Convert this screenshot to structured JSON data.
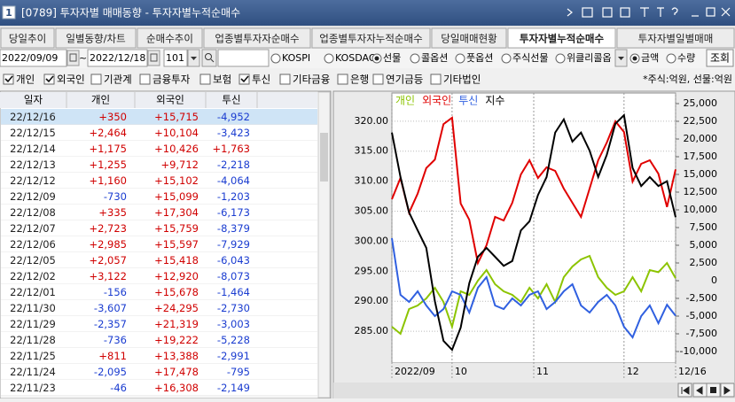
{
  "window": {
    "number": "1",
    "title": "[0789] 투자자별 매매동향 - 투자자별누적순매수"
  },
  "tabs": [
    {
      "label": "당일추이",
      "active": false
    },
    {
      "label": "일별동향/차트",
      "active": false
    },
    {
      "label": "순매수추이",
      "active": false
    },
    {
      "label": "업종별투자자순매수",
      "active": false
    },
    {
      "label": "업종별투자자누적순매수",
      "active": false
    },
    {
      "label": "당일매매현황",
      "active": false
    },
    {
      "label": "투자자별누적순매수",
      "active": true
    },
    {
      "label": "투자자별일별매매",
      "active": false
    }
  ],
  "toolbar": {
    "start_date": "2022/09/09",
    "date_sep": "~",
    "end_date": "2022/12/18",
    "code": "101",
    "markets": [
      {
        "label": "KOSPI",
        "checked": false
      },
      {
        "label": "KOSDAQ",
        "checked": false
      },
      {
        "label": "선물",
        "checked": true
      },
      {
        "label": "콜옵션",
        "checked": false
      },
      {
        "label": "풋옵션",
        "checked": false
      },
      {
        "label": "주식선물",
        "checked": false
      },
      {
        "label": "위클리콜옵",
        "checked": false
      }
    ],
    "units": [
      {
        "label": "금액",
        "checked": true
      },
      {
        "label": "수량",
        "checked": false
      }
    ],
    "query_button": "조회"
  },
  "investors": [
    {
      "label": "개인",
      "checked": true
    },
    {
      "label": "외국인",
      "checked": true
    },
    {
      "label": "기관계",
      "checked": false
    },
    {
      "label": "금융투자",
      "checked": false
    },
    {
      "label": "보험",
      "checked": false
    },
    {
      "label": "투신",
      "checked": true
    },
    {
      "label": "기타금융",
      "checked": false
    },
    {
      "label": "은행",
      "checked": false
    },
    {
      "label": "연기금등",
      "checked": false
    },
    {
      "label": "기타법인",
      "checked": false
    }
  ],
  "unit_note": "*주식:억원, 선물:억원",
  "table": {
    "columns": [
      "일자",
      "개인",
      "외국인",
      "투신"
    ],
    "rows": [
      [
        "22/12/16",
        "+350",
        "+15,715",
        "-4,952"
      ],
      [
        "22/12/15",
        "+2,464",
        "+10,104",
        "-3,423"
      ],
      [
        "22/12/14",
        "+1,175",
        "+10,426",
        "+1,763"
      ],
      [
        "22/12/13",
        "+1,255",
        "+9,712",
        "-2,218"
      ],
      [
        "22/12/12",
        "+1,160",
        "+15,102",
        "-4,064"
      ],
      [
        "22/12/09",
        "-730",
        "+15,099",
        "-1,203"
      ],
      [
        "22/12/08",
        "+335",
        "+17,304",
        "-6,173"
      ],
      [
        "22/12/07",
        "+2,723",
        "+15,759",
        "-8,379"
      ],
      [
        "22/12/06",
        "+2,985",
        "+15,597",
        "-7,929"
      ],
      [
        "22/12/05",
        "+2,057",
        "+15,418",
        "-6,043"
      ],
      [
        "22/12/02",
        "+3,122",
        "+12,920",
        "-8,073"
      ],
      [
        "22/12/01",
        "-156",
        "+15,678",
        "-1,464"
      ],
      [
        "22/11/30",
        "-3,607",
        "+24,295",
        "-2,730"
      ],
      [
        "22/11/29",
        "-2,357",
        "+21,319",
        "-3,003"
      ],
      [
        "22/11/28",
        "-736",
        "+19,222",
        "-5,228"
      ],
      [
        "22/11/25",
        "+811",
        "+13,388",
        "-2,991"
      ],
      [
        "22/11/24",
        "-2,095",
        "+17,478",
        "-795"
      ],
      [
        "22/11/23",
        "-46",
        "+16,308",
        "-2,149"
      ]
    ]
  },
  "chart_data": {
    "type": "line",
    "grid": true,
    "x": [
      0,
      2,
      4,
      6,
      8,
      10,
      12,
      14,
      16,
      18,
      20,
      22,
      24,
      26,
      28,
      30,
      32,
      34,
      36,
      38,
      40,
      42,
      44,
      46,
      48,
      50,
      52,
      54,
      56,
      58,
      60,
      62,
      64,
      66
    ],
    "xlim": [
      0,
      66
    ],
    "xticks": [
      {
        "value": 0,
        "label": "2022/09"
      },
      {
        "value": 14,
        "label": "10"
      },
      {
        "value": 33,
        "label": "11"
      },
      {
        "value": 54,
        "label": "12"
      },
      {
        "value": 66,
        "label": "12/16"
      }
    ],
    "ylim": [
      279.7,
      324.7
    ],
    "yticks": [
      {
        "value": 285,
        "label": "285.00"
      },
      {
        "value": 290,
        "label": "290.00"
      },
      {
        "value": 295,
        "label": "295.00"
      },
      {
        "value": 300,
        "label": "300.00"
      },
      {
        "value": 305,
        "label": "305.00"
      },
      {
        "value": 310,
        "label": "310.00"
      },
      {
        "value": 315,
        "label": "315.00"
      },
      {
        "value": 320,
        "label": "320.00"
      }
    ],
    "y2lim": [
      -11625,
      26500
    ],
    "y2ticks": [
      {
        "value": -10000,
        "label": "-10,000"
      },
      {
        "value": -7500,
        "label": "-7,500"
      },
      {
        "value": -5000,
        "label": "-5,000"
      },
      {
        "value": -2500,
        "label": "-2,500"
      },
      0,
      {
        "value": 2500,
        "label": "2,500"
      },
      {
        "value": 5000,
        "label": "5,000"
      },
      {
        "value": 7500,
        "label": "7,500"
      },
      {
        "value": 10000,
        "label": "10,000"
      },
      {
        "value": 12500,
        "label": "12,500"
      },
      {
        "value": 15000,
        "label": "15,000"
      },
      {
        "value": 17500,
        "label": "17,500"
      },
      {
        "value": 20000,
        "label": "20,000"
      },
      {
        "value": 22500,
        "label": "22,500"
      },
      {
        "value": 25000,
        "label": "25,000"
      }
    ],
    "series": [
      {
        "name": "개인",
        "color": "#8cc400",
        "axis": "y2",
        "values": [
          -6500,
          -7500,
          -4000,
          -3500,
          -2500,
          -1000,
          -3000,
          -6500,
          -1500,
          -2000,
          0,
          1500,
          -500,
          -1500,
          -2000,
          -3000,
          -1000,
          -2500,
          -500,
          -3000,
          500,
          2000,
          3000,
          3500,
          500,
          -1000,
          -2000,
          -1500,
          500,
          -1500,
          1500,
          1200,
          2500,
          350
        ]
      },
      {
        "name": "외국인",
        "color": "#e00000",
        "axis": "y2",
        "values": [
          11500,
          14500,
          9600,
          12300,
          15900,
          17100,
          22100,
          23000,
          10900,
          8600,
          2500,
          5000,
          9000,
          8500,
          11000,
          15000,
          17000,
          14500,
          16000,
          15500,
          13000,
          11000,
          9000,
          13000,
          17000,
          19500,
          22500,
          21000,
          14000,
          16500,
          17000,
          15100,
          10400,
          15715
        ]
      },
      {
        "name": "투신",
        "color": "#3060e0",
        "axis": "y2",
        "values": [
          6000,
          -2000,
          -3000,
          -1500,
          -3500,
          -5000,
          -4000,
          -1500,
          -2000,
          -4500,
          -1000,
          500,
          -3500,
          -4000,
          -2500,
          -3500,
          -2000,
          -1500,
          -4000,
          -3000,
          -1500,
          -500,
          -3500,
          -4500,
          -3000,
          -2000,
          -3500,
          -6500,
          -8000,
          -5000,
          -3500,
          -6000,
          -3400,
          -4952
        ]
      },
      {
        "name": "지수",
        "color": "#000000",
        "axis": "y",
        "values": [
          318.1,
          310.7,
          304.8,
          301.8,
          298.9,
          290.0,
          283.4,
          281.9,
          285.6,
          293.0,
          297.4,
          298.9,
          297.4,
          295.9,
          296.7,
          301.8,
          303.3,
          307.7,
          310.7,
          318.1,
          320.3,
          316.6,
          318.1,
          315.1,
          310.7,
          314.4,
          319.6,
          321.0,
          312.2,
          309.2,
          310.7,
          309.2,
          310.0,
          304.0
        ]
      }
    ]
  }
}
